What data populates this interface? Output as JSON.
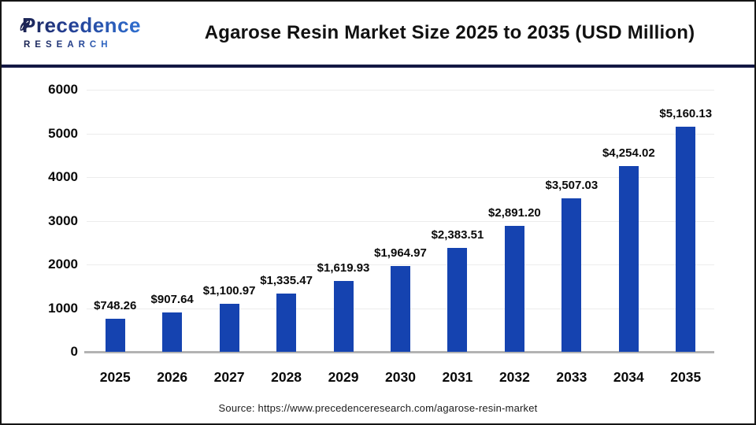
{
  "header": {
    "logo": {
      "line1": "Precedence",
      "line2": "RESEARCH"
    },
    "title": "Agarose Resin Market Size 2025 to 2035 (USD Million)"
  },
  "chart_data": {
    "type": "bar",
    "title": "Agarose Resin Market Size 2025 to 2035 (USD Million)",
    "categories": [
      "2025",
      "2026",
      "2027",
      "2028",
      "2029",
      "2030",
      "2031",
      "2032",
      "2033",
      "2034",
      "2035"
    ],
    "values": [
      748.26,
      907.64,
      1100.97,
      1335.47,
      1619.93,
      1964.97,
      2383.51,
      2891.2,
      3507.03,
      4254.02,
      5160.13
    ],
    "value_labels": [
      "$748.26",
      "$907.64",
      "$1,100.97",
      "$1,335.47",
      "$1,619.93",
      "$1,964.97",
      "$2,383.51",
      "$2,891.20",
      "$3,507.03",
      "$4,254.02",
      "$5,160.13"
    ],
    "xlabel": "",
    "ylabel": "",
    "ylim": [
      0,
      6000
    ],
    "yticks": [
      0,
      1000,
      2000,
      3000,
      4000,
      5000,
      6000
    ],
    "grid": true,
    "legend": false,
    "bar_color": "#1543b0",
    "gridline_color": "#ececec",
    "axisline_color": "#b3b3b3"
  },
  "footer": {
    "source": "Source: https://www.precedenceresearch.com/agarose-resin-market"
  }
}
